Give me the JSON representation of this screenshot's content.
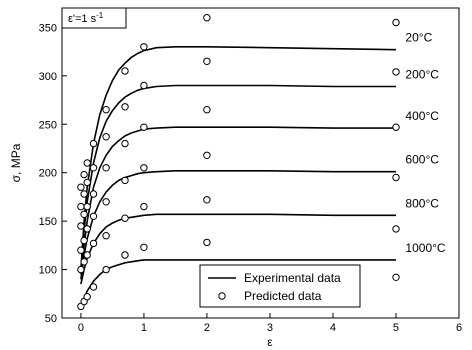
{
  "chart_data": {
    "type": "line",
    "title": "",
    "rate_annotation": "ε'=1 s",
    "rate_superscript": "-1",
    "xlabel": "ε",
    "ylabel": "σ, MPa",
    "xlim": [
      -0.3,
      6
    ],
    "ylim": [
      50,
      370
    ],
    "xticks": [
      0,
      1,
      2,
      3,
      4,
      5,
      6
    ],
    "yticks": [
      50,
      100,
      150,
      200,
      250,
      300,
      350
    ],
    "grid": false,
    "legend_position": "bottom-center",
    "legend": [
      {
        "label": "Experimental data",
        "marker": "line"
      },
      {
        "label": "Predicted data",
        "marker": "open-circle"
      }
    ],
    "series": [
      {
        "temperature_label": "20°C",
        "experimental": {
          "x": [
            0,
            0.05,
            0.1,
            0.2,
            0.3,
            0.4,
            0.5,
            0.6,
            0.7,
            0.8,
            0.9,
            1.0,
            1.2,
            1.5,
            2.0,
            3.0,
            4.0,
            5.0
          ],
          "y": [
            100,
            150,
            185,
            230,
            260,
            280,
            295,
            306,
            313,
            319,
            323,
            326,
            329,
            330,
            330,
            329,
            328,
            327
          ]
        },
        "predicted": {
          "x": [
            0,
            0.05,
            0.1,
            0.2,
            0.4,
            0.7,
            1.0,
            2.0,
            5.0
          ],
          "y": [
            185,
            198,
            210,
            230,
            265,
            305,
            330,
            360,
            355
          ]
        }
      },
      {
        "temperature_label": "200°C",
        "experimental": {
          "x": [
            0,
            0.05,
            0.1,
            0.2,
            0.3,
            0.4,
            0.5,
            0.6,
            0.7,
            0.8,
            0.9,
            1.0,
            1.2,
            1.5,
            2.0,
            3.0,
            4.0,
            5.0
          ],
          "y": [
            100,
            140,
            170,
            210,
            236,
            253,
            264,
            272,
            278,
            282,
            285,
            287,
            289,
            290,
            290,
            290,
            289,
            289
          ]
        },
        "predicted": {
          "x": [
            0,
            0.05,
            0.1,
            0.2,
            0.4,
            0.7,
            1.0,
            2.0,
            5.0
          ],
          "y": [
            165,
            178,
            190,
            205,
            237,
            268,
            290,
            315,
            304
          ]
        }
      },
      {
        "temperature_label": "400°C",
        "experimental": {
          "x": [
            0,
            0.05,
            0.1,
            0.2,
            0.3,
            0.4,
            0.5,
            0.6,
            0.7,
            0.8,
            0.9,
            1.0,
            1.2,
            1.5,
            2.0,
            3.0,
            4.0,
            5.0
          ],
          "y": [
            95,
            125,
            150,
            185,
            205,
            218,
            227,
            233,
            238,
            241,
            243,
            245,
            246,
            247,
            247,
            247,
            246,
            246
          ]
        },
        "predicted": {
          "x": [
            0,
            0.05,
            0.1,
            0.2,
            0.4,
            0.7,
            1.0,
            2.0,
            5.0
          ],
          "y": [
            145,
            157,
            165,
            178,
            205,
            230,
            247,
            265,
            247
          ]
        }
      },
      {
        "temperature_label": "600°C",
        "experimental": {
          "x": [
            0,
            0.05,
            0.1,
            0.2,
            0.3,
            0.4,
            0.5,
            0.6,
            0.7,
            0.8,
            0.9,
            1.0,
            1.2,
            1.5,
            2.0,
            3.0,
            4.0,
            5.0
          ],
          "y": [
            90,
            115,
            132,
            155,
            170,
            180,
            187,
            192,
            195,
            197,
            199,
            200,
            201,
            202,
            202,
            202,
            201,
            201
          ]
        },
        "predicted": {
          "x": [
            0,
            0.05,
            0.1,
            0.2,
            0.4,
            0.7,
            1.0,
            2.0,
            5.0
          ],
          "y": [
            120,
            130,
            142,
            155,
            170,
            192,
            205,
            218,
            195
          ]
        }
      },
      {
        "temperature_label": "800°C",
        "experimental": {
          "x": [
            0,
            0.05,
            0.1,
            0.2,
            0.3,
            0.4,
            0.5,
            0.6,
            0.7,
            0.8,
            0.9,
            1.0,
            1.2,
            1.5,
            2.0,
            3.0,
            4.0,
            5.0
          ],
          "y": [
            85,
            100,
            112,
            127,
            137,
            144,
            148,
            151,
            153,
            154,
            155,
            156,
            157,
            157,
            157,
            157,
            156,
            156
          ]
        },
        "predicted": {
          "x": [
            0,
            0.05,
            0.1,
            0.2,
            0.4,
            0.7,
            1.0,
            2.0,
            5.0
          ],
          "y": [
            100,
            108,
            115,
            127,
            135,
            153,
            165,
            172,
            142
          ]
        }
      },
      {
        "temperature_label": "1000°C",
        "experimental": {
          "x": [
            0,
            0.05,
            0.1,
            0.2,
            0.3,
            0.4,
            0.5,
            0.6,
            0.7,
            0.8,
            0.9,
            1.0,
            1.2,
            1.5,
            2.0,
            3.0,
            4.0,
            5.0
          ],
          "y": [
            62,
            70,
            78,
            88,
            95,
            100,
            103,
            105,
            107,
            108,
            109,
            110,
            110,
            110,
            110,
            110,
            110,
            110
          ]
        },
        "predicted": {
          "x": [
            0,
            0.05,
            0.1,
            0.2,
            0.4,
            0.7,
            1.0,
            2.0,
            5.0
          ],
          "y": [
            62,
            67,
            72,
            82,
            100,
            115,
            123,
            128,
            92
          ]
        }
      }
    ]
  }
}
